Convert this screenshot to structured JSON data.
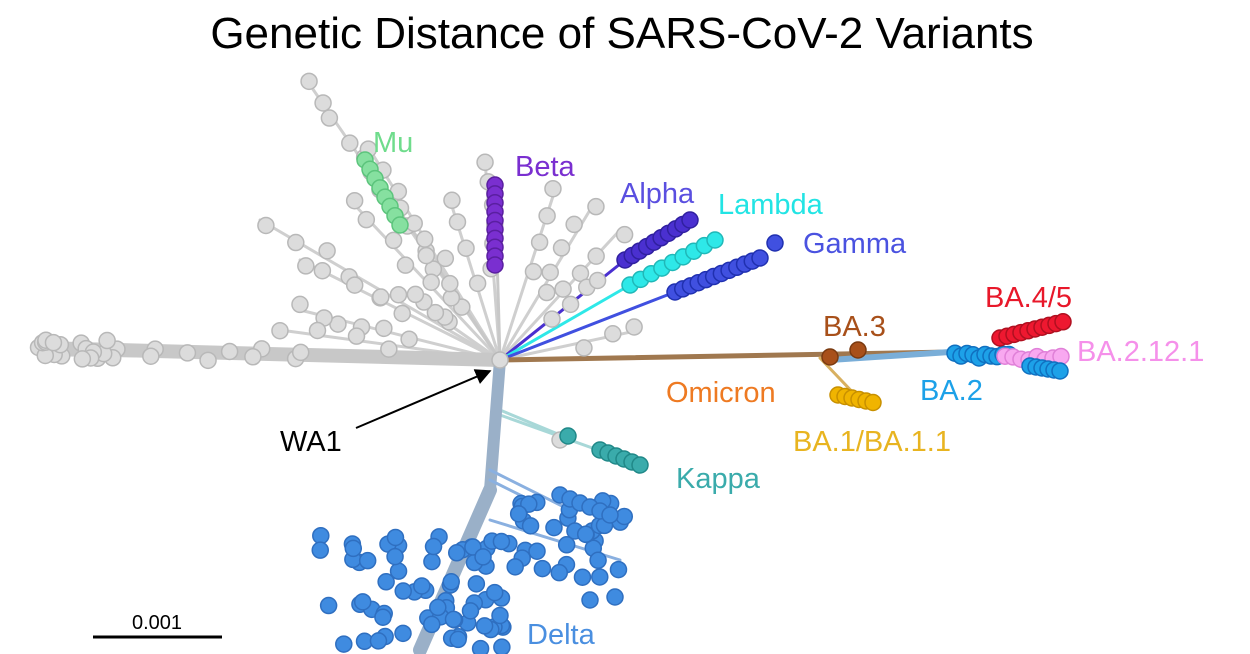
{
  "title": "Genetic Distance of SARS-CoV-2 Variants",
  "labels": {
    "mu": "Mu",
    "beta": "Beta",
    "alpha": "Alpha",
    "lambda": "Lambda",
    "gamma": "Gamma",
    "ba45": "BA.4/5",
    "ba3": "BA.3",
    "ba2121": "BA.2.12.1",
    "omicron": "Omicron",
    "ba2": "BA.2",
    "wa1": "WA1",
    "ba1": "BA.1/BA.1.1",
    "kappa": "Kappa",
    "delta": "Delta"
  },
  "scale_bar": {
    "label": "0.001"
  }
}
